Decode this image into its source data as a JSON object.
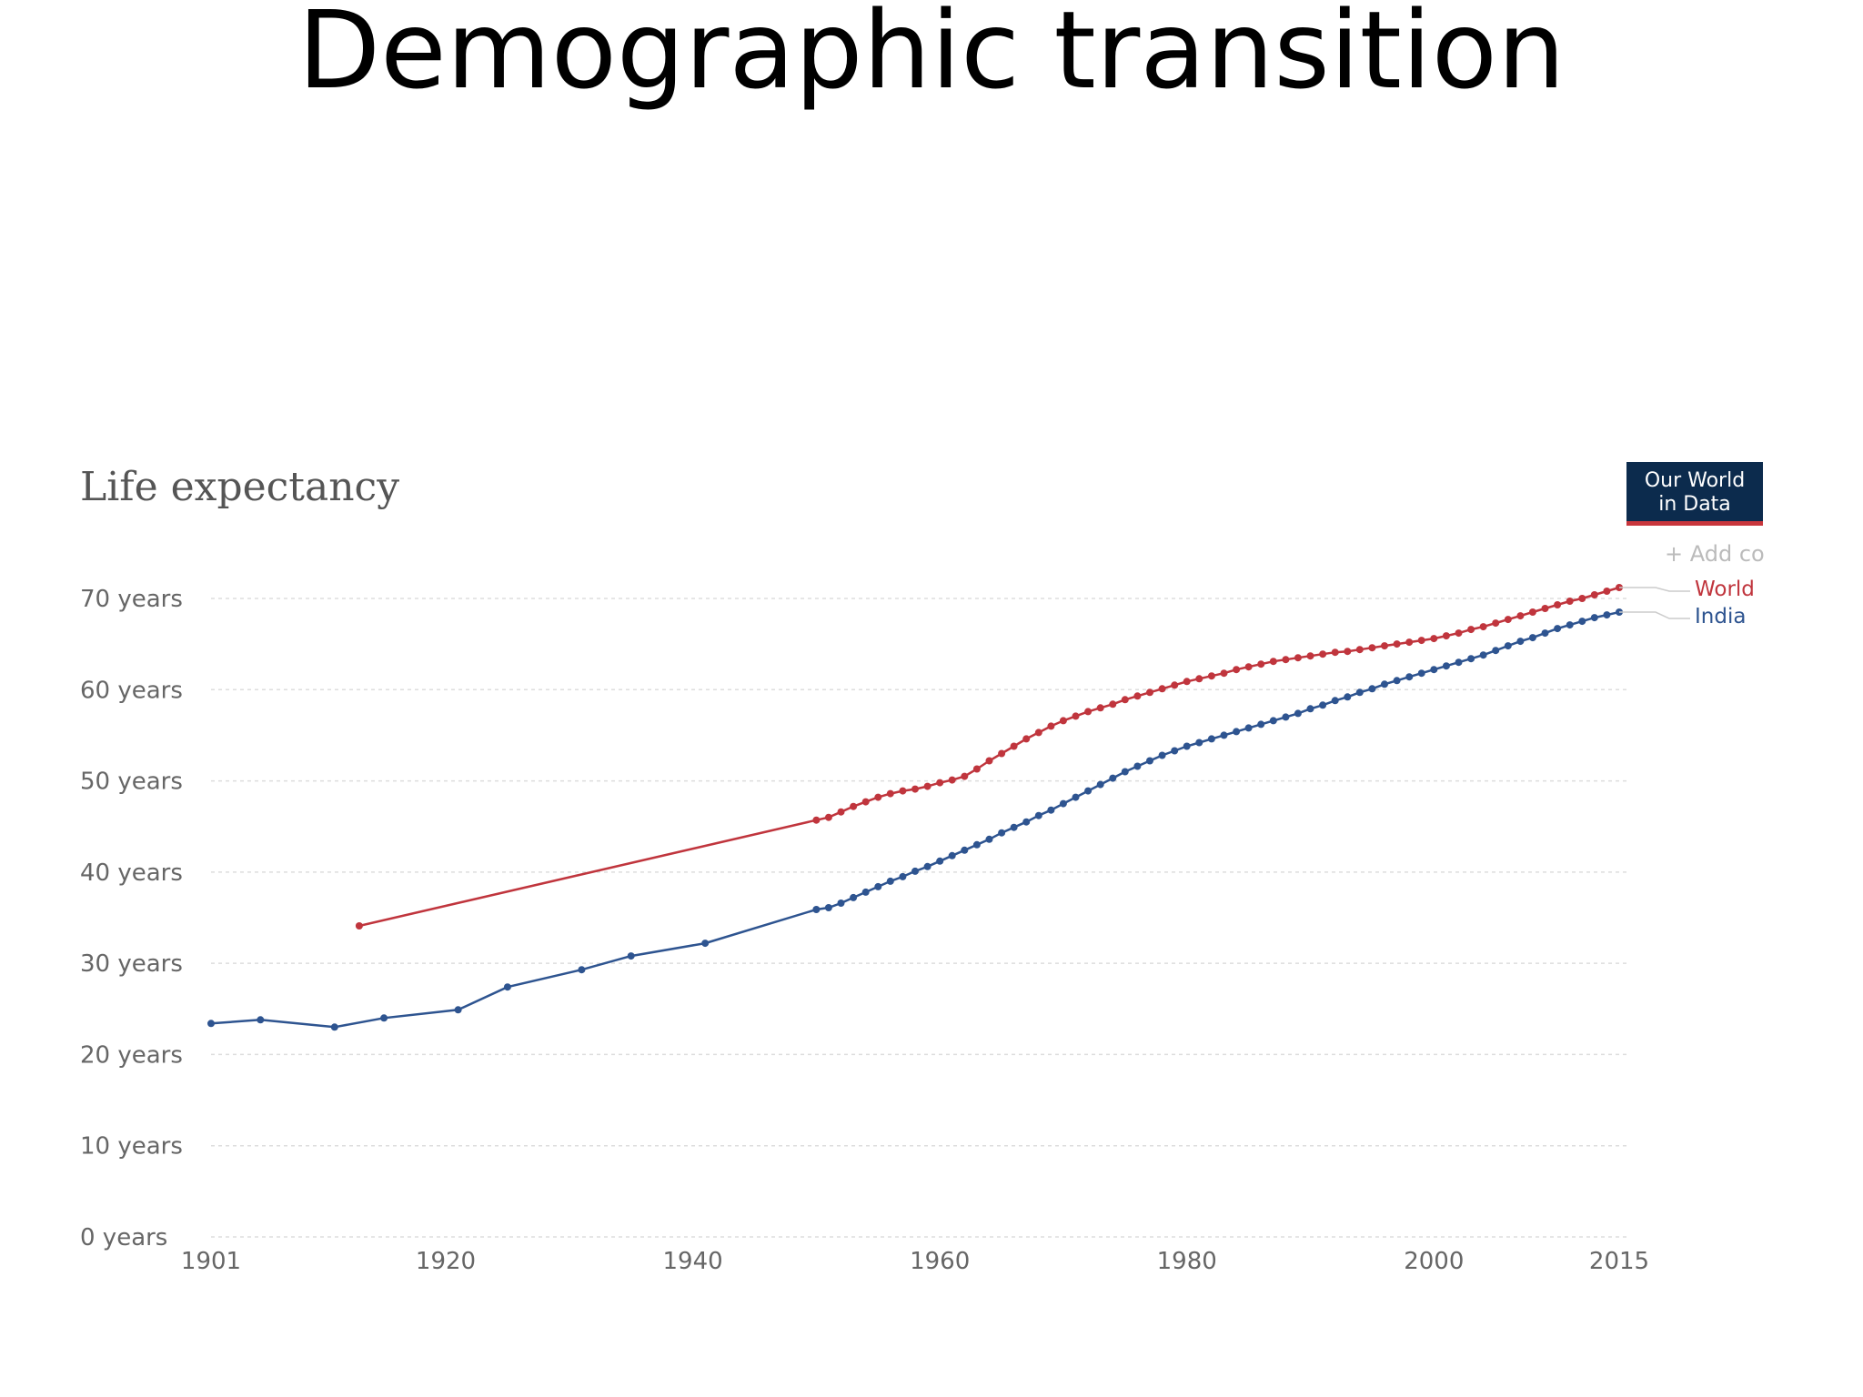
{
  "slide_title": "Demographic transition",
  "logo": {
    "line1": "Our World",
    "line2": "in Data"
  },
  "add_country_label": "+ Add co",
  "chart_data": {
    "type": "line",
    "title": "Life expectancy",
    "xlabel": "",
    "ylabel": "",
    "xlim": [
      1901,
      2015
    ],
    "ylim": [
      0,
      70
    ],
    "x_ticks": [
      {
        "value": 1901,
        "label": "1901"
      },
      {
        "value": 1920,
        "label": "1920"
      },
      {
        "value": 1940,
        "label": "1940"
      },
      {
        "value": 1960,
        "label": "1960"
      },
      {
        "value": 1980,
        "label": "1980"
      },
      {
        "value": 2000,
        "label": "2000"
      },
      {
        "value": 2015,
        "label": "2015"
      }
    ],
    "y_ticks": [
      {
        "value": 0,
        "label": "0 years"
      },
      {
        "value": 10,
        "label": "10 years"
      },
      {
        "value": 20,
        "label": "20 years"
      },
      {
        "value": 30,
        "label": "30 years"
      },
      {
        "value": 40,
        "label": "40 years"
      },
      {
        "value": 50,
        "label": "50 years"
      },
      {
        "value": 60,
        "label": "60 years"
      },
      {
        "value": 70,
        "label": "70 years"
      }
    ],
    "grid": true,
    "legend": "right",
    "series": [
      {
        "name": "World",
        "color": "#c0353d",
        "points": [
          [
            1913,
            34.1
          ],
          [
            1950,
            45.7
          ],
          [
            1951,
            46.0
          ],
          [
            1952,
            46.6
          ],
          [
            1953,
            47.2
          ],
          [
            1954,
            47.7
          ],
          [
            1955,
            48.2
          ],
          [
            1956,
            48.6
          ],
          [
            1957,
            48.9
          ],
          [
            1958,
            49.1
          ],
          [
            1959,
            49.4
          ],
          [
            1960,
            49.8
          ],
          [
            1961,
            50.1
          ],
          [
            1962,
            50.5
          ],
          [
            1963,
            51.3
          ],
          [
            1964,
            52.2
          ],
          [
            1965,
            53.0
          ],
          [
            1966,
            53.8
          ],
          [
            1967,
            54.6
          ],
          [
            1968,
            55.3
          ],
          [
            1969,
            56.0
          ],
          [
            1970,
            56.6
          ],
          [
            1971,
            57.1
          ],
          [
            1972,
            57.6
          ],
          [
            1973,
            58.0
          ],
          [
            1974,
            58.4
          ],
          [
            1975,
            58.9
          ],
          [
            1976,
            59.3
          ],
          [
            1977,
            59.7
          ],
          [
            1978,
            60.1
          ],
          [
            1979,
            60.5
          ],
          [
            1980,
            60.9
          ],
          [
            1981,
            61.2
          ],
          [
            1982,
            61.5
          ],
          [
            1983,
            61.8
          ],
          [
            1984,
            62.2
          ],
          [
            1985,
            62.5
          ],
          [
            1986,
            62.8
          ],
          [
            1987,
            63.1
          ],
          [
            1988,
            63.3
          ],
          [
            1989,
            63.5
          ],
          [
            1990,
            63.7
          ],
          [
            1991,
            63.9
          ],
          [
            1992,
            64.1
          ],
          [
            1993,
            64.2
          ],
          [
            1994,
            64.4
          ],
          [
            1995,
            64.6
          ],
          [
            1996,
            64.8
          ],
          [
            1997,
            65.0
          ],
          [
            1998,
            65.2
          ],
          [
            1999,
            65.4
          ],
          [
            2000,
            65.6
          ],
          [
            2001,
            65.9
          ],
          [
            2002,
            66.2
          ],
          [
            2003,
            66.6
          ],
          [
            2004,
            66.9
          ],
          [
            2005,
            67.3
          ],
          [
            2006,
            67.7
          ],
          [
            2007,
            68.1
          ],
          [
            2008,
            68.5
          ],
          [
            2009,
            68.9
          ],
          [
            2010,
            69.3
          ],
          [
            2011,
            69.7
          ],
          [
            2012,
            70.0
          ],
          [
            2013,
            70.4
          ],
          [
            2014,
            70.8
          ],
          [
            2015,
            71.2
          ]
        ]
      },
      {
        "name": "India",
        "color": "#2e5490",
        "points": [
          [
            1901,
            23.4
          ],
          [
            1905,
            23.8
          ],
          [
            1911,
            23.0
          ],
          [
            1915,
            24.0
          ],
          [
            1921,
            24.9
          ],
          [
            1925,
            27.4
          ],
          [
            1931,
            29.3
          ],
          [
            1935,
            30.8
          ],
          [
            1941,
            32.2
          ],
          [
            1950,
            35.9
          ],
          [
            1951,
            36.1
          ],
          [
            1952,
            36.6
          ],
          [
            1953,
            37.2
          ],
          [
            1954,
            37.8
          ],
          [
            1955,
            38.4
          ],
          [
            1956,
            39.0
          ],
          [
            1957,
            39.5
          ],
          [
            1958,
            40.1
          ],
          [
            1959,
            40.6
          ],
          [
            1960,
            41.2
          ],
          [
            1961,
            41.8
          ],
          [
            1962,
            42.4
          ],
          [
            1963,
            43.0
          ],
          [
            1964,
            43.6
          ],
          [
            1965,
            44.3
          ],
          [
            1966,
            44.9
          ],
          [
            1967,
            45.5
          ],
          [
            1968,
            46.2
          ],
          [
            1969,
            46.8
          ],
          [
            1970,
            47.5
          ],
          [
            1971,
            48.2
          ],
          [
            1972,
            48.9
          ],
          [
            1973,
            49.6
          ],
          [
            1974,
            50.3
          ],
          [
            1975,
            51.0
          ],
          [
            1976,
            51.6
          ],
          [
            1977,
            52.2
          ],
          [
            1978,
            52.8
          ],
          [
            1979,
            53.3
          ],
          [
            1980,
            53.8
          ],
          [
            1981,
            54.2
          ],
          [
            1982,
            54.6
          ],
          [
            1983,
            55.0
          ],
          [
            1984,
            55.4
          ],
          [
            1985,
            55.8
          ],
          [
            1986,
            56.2
          ],
          [
            1987,
            56.6
          ],
          [
            1988,
            57.0
          ],
          [
            1989,
            57.4
          ],
          [
            1990,
            57.9
          ],
          [
            1991,
            58.3
          ],
          [
            1992,
            58.8
          ],
          [
            1993,
            59.2
          ],
          [
            1994,
            59.7
          ],
          [
            1995,
            60.1
          ],
          [
            1996,
            60.6
          ],
          [
            1997,
            61.0
          ],
          [
            1998,
            61.4
          ],
          [
            1999,
            61.8
          ],
          [
            2000,
            62.2
          ],
          [
            2001,
            62.6
          ],
          [
            2002,
            63.0
          ],
          [
            2003,
            63.4
          ],
          [
            2004,
            63.8
          ],
          [
            2005,
            64.3
          ],
          [
            2006,
            64.8
          ],
          [
            2007,
            65.3
          ],
          [
            2008,
            65.7
          ],
          [
            2009,
            66.2
          ],
          [
            2010,
            66.7
          ],
          [
            2011,
            67.1
          ],
          [
            2012,
            67.5
          ],
          [
            2013,
            67.9
          ],
          [
            2014,
            68.2
          ],
          [
            2015,
            68.5
          ]
        ]
      }
    ]
  }
}
